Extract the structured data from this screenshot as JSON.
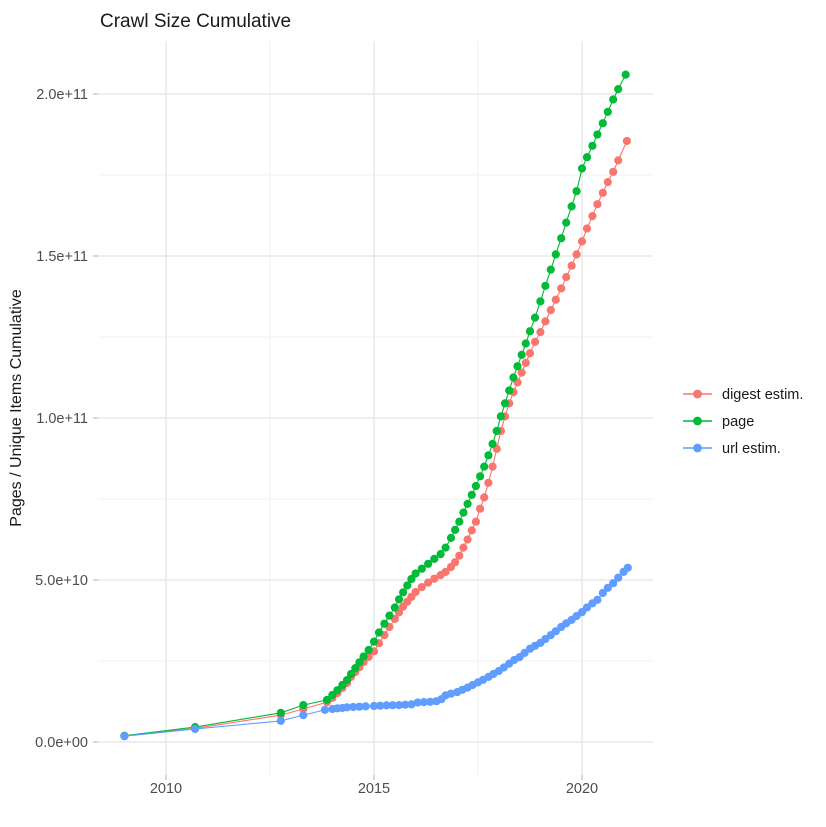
{
  "title": "Crawl Size Cumulative",
  "y_axis": {
    "label": "Pages / Unique Items Cumulative",
    "tick_labels": [
      "0.0e+00",
      "5.0e+10",
      "1.0e+11",
      "1.5e+11",
      "2.0e+11"
    ],
    "tick_values_billions": [
      0,
      50,
      100,
      150,
      200
    ],
    "minor_gridlines_billions": [
      25,
      75,
      125,
      175
    ]
  },
  "x_axis": {
    "tick_labels": [
      "2010",
      "2015",
      "2020"
    ],
    "tick_values_years": [
      2010,
      2015,
      2020
    ],
    "minor_gridlines_years": [
      2012.5,
      2017.5
    ]
  },
  "legend": {
    "position": "right-middle",
    "items": [
      {
        "label": "digest estim.",
        "color": "#F8766D"
      },
      {
        "label": "page",
        "color": "#00BA38"
      },
      {
        "label": "url estim.",
        "color": "#619CFF"
      }
    ]
  },
  "colors": {
    "grid_major": "#E4E4E4",
    "grid_minor": "#F1F1F1",
    "axis_text": "#4D4D4D",
    "tick_mark": "#BEBEBE",
    "title_text": "#1A1A1A"
  },
  "chart_data": {
    "type": "line",
    "title": "Crawl Size Cumulative",
    "xlabel": "",
    "ylabel": "Pages / Unique Items Cumulative",
    "x_range_years": [
      2008.4,
      2021.9
    ],
    "y_range_billions": [
      0,
      220
    ],
    "grid": "on",
    "legend_position": "right-middle",
    "units": "point values are billions (1e9) of pages / unique items, cumulative",
    "series": [
      {
        "name": "digest estim.",
        "color": "#F8766D",
        "points": [
          [
            2009.0,
            1.9
          ],
          [
            2010.7,
            4.2
          ],
          [
            2012.76,
            8.3
          ],
          [
            2013.3,
            10.2
          ],
          [
            2013.87,
            12.3
          ],
          [
            2014.0,
            13.6
          ],
          [
            2014.12,
            15.1
          ],
          [
            2014.24,
            16.7
          ],
          [
            2014.35,
            18.2
          ],
          [
            2014.45,
            20.1
          ],
          [
            2014.55,
            21.6
          ],
          [
            2014.65,
            23.1
          ],
          [
            2014.75,
            24.7
          ],
          [
            2014.87,
            26.3
          ],
          [
            2015.0,
            28.0
          ],
          [
            2015.12,
            30.5
          ],
          [
            2015.25,
            33.0
          ],
          [
            2015.37,
            35.5
          ],
          [
            2015.5,
            38.0
          ],
          [
            2015.6,
            40.0
          ],
          [
            2015.7,
            41.8
          ],
          [
            2015.8,
            43.3
          ],
          [
            2015.9,
            44.8
          ],
          [
            2016.0,
            46.3
          ],
          [
            2016.15,
            47.8
          ],
          [
            2016.3,
            49.2
          ],
          [
            2016.45,
            50.4
          ],
          [
            2016.6,
            51.5
          ],
          [
            2016.72,
            52.5
          ],
          [
            2016.85,
            54.0
          ],
          [
            2016.95,
            55.5
          ],
          [
            2017.05,
            57.5
          ],
          [
            2017.15,
            60.0
          ],
          [
            2017.25,
            62.5
          ],
          [
            2017.35,
            65.3
          ],
          [
            2017.45,
            68.0
          ],
          [
            2017.55,
            72.0
          ],
          [
            2017.65,
            75.5
          ],
          [
            2017.75,
            80.0
          ],
          [
            2017.85,
            85.0
          ],
          [
            2017.95,
            90.5
          ],
          [
            2018.05,
            96.0
          ],
          [
            2018.15,
            100.5
          ],
          [
            2018.25,
            104.5
          ],
          [
            2018.35,
            108.0
          ],
          [
            2018.45,
            111.0
          ],
          [
            2018.55,
            114.0
          ],
          [
            2018.65,
            117.0
          ],
          [
            2018.75,
            120.0
          ],
          [
            2018.87,
            123.5
          ],
          [
            2019.0,
            126.5
          ],
          [
            2019.12,
            129.8
          ],
          [
            2019.25,
            133.3
          ],
          [
            2019.37,
            136.5
          ],
          [
            2019.5,
            140.0
          ],
          [
            2019.62,
            143.5
          ],
          [
            2019.75,
            147.0
          ],
          [
            2019.87,
            150.5
          ],
          [
            2020.0,
            154.5
          ],
          [
            2020.12,
            158.5
          ],
          [
            2020.25,
            162.3
          ],
          [
            2020.37,
            166.0
          ],
          [
            2020.5,
            169.5
          ],
          [
            2020.62,
            172.8
          ],
          [
            2020.75,
            176.0
          ],
          [
            2020.87,
            179.5
          ],
          [
            2021.08,
            185.5
          ]
        ]
      },
      {
        "name": "page",
        "color": "#00BA38",
        "points": [
          [
            2009.0,
            1.9
          ],
          [
            2010.7,
            4.6
          ],
          [
            2012.76,
            9.0
          ],
          [
            2013.3,
            11.4
          ],
          [
            2013.87,
            13.0
          ],
          [
            2014.0,
            14.5
          ],
          [
            2014.12,
            16.0
          ],
          [
            2014.24,
            17.6
          ],
          [
            2014.35,
            19.1
          ],
          [
            2014.45,
            21.0
          ],
          [
            2014.55,
            22.8
          ],
          [
            2014.65,
            24.6
          ],
          [
            2014.75,
            26.4
          ],
          [
            2014.87,
            28.4
          ],
          [
            2015.0,
            31.0
          ],
          [
            2015.12,
            33.8
          ],
          [
            2015.25,
            36.5
          ],
          [
            2015.37,
            39.0
          ],
          [
            2015.5,
            41.5
          ],
          [
            2015.6,
            44.0
          ],
          [
            2015.7,
            46.2
          ],
          [
            2015.8,
            48.3
          ],
          [
            2015.9,
            50.3
          ],
          [
            2016.0,
            52.0
          ],
          [
            2016.15,
            53.5
          ],
          [
            2016.3,
            55.0
          ],
          [
            2016.45,
            56.5
          ],
          [
            2016.6,
            58.0
          ],
          [
            2016.72,
            60.0
          ],
          [
            2016.85,
            63.0
          ],
          [
            2016.95,
            65.5
          ],
          [
            2017.05,
            68.0
          ],
          [
            2017.15,
            70.8
          ],
          [
            2017.25,
            73.5
          ],
          [
            2017.35,
            76.3
          ],
          [
            2017.45,
            79.0
          ],
          [
            2017.55,
            82.0
          ],
          [
            2017.65,
            85.0
          ],
          [
            2017.75,
            88.5
          ],
          [
            2017.85,
            92.0
          ],
          [
            2017.95,
            96.0
          ],
          [
            2018.05,
            100.5
          ],
          [
            2018.15,
            104.5
          ],
          [
            2018.25,
            108.5
          ],
          [
            2018.35,
            112.5
          ],
          [
            2018.45,
            116.0
          ],
          [
            2018.55,
            119.5
          ],
          [
            2018.65,
            123.0
          ],
          [
            2018.75,
            126.8
          ],
          [
            2018.87,
            131.0
          ],
          [
            2019.0,
            136.0
          ],
          [
            2019.12,
            140.8
          ],
          [
            2019.25,
            145.8
          ],
          [
            2019.37,
            150.5
          ],
          [
            2019.5,
            155.5
          ],
          [
            2019.62,
            160.3
          ],
          [
            2019.75,
            165.3
          ],
          [
            2019.87,
            170.0
          ],
          [
            2020.0,
            177.0
          ],
          [
            2020.12,
            180.5
          ],
          [
            2020.25,
            184.0
          ],
          [
            2020.37,
            187.5
          ],
          [
            2020.5,
            191.0
          ],
          [
            2020.62,
            194.5
          ],
          [
            2020.75,
            198.3
          ],
          [
            2020.87,
            201.5
          ],
          [
            2021.05,
            206.0
          ]
        ]
      },
      {
        "name": "url estim.",
        "color": "#619CFF",
        "points": [
          [
            2009.0,
            1.8
          ],
          [
            2010.7,
            4.0
          ],
          [
            2012.76,
            6.5
          ],
          [
            2013.3,
            8.3
          ],
          [
            2013.82,
            9.9
          ],
          [
            2014.0,
            10.2
          ],
          [
            2014.12,
            10.4
          ],
          [
            2014.24,
            10.5
          ],
          [
            2014.35,
            10.7
          ],
          [
            2014.5,
            10.8
          ],
          [
            2014.65,
            10.9
          ],
          [
            2014.8,
            11.0
          ],
          [
            2015.0,
            11.1
          ],
          [
            2015.15,
            11.2
          ],
          [
            2015.3,
            11.3
          ],
          [
            2015.45,
            11.35
          ],
          [
            2015.6,
            11.4
          ],
          [
            2015.75,
            11.5
          ],
          [
            2015.9,
            11.6
          ],
          [
            2016.05,
            12.2
          ],
          [
            2016.2,
            12.3
          ],
          [
            2016.35,
            12.4
          ],
          [
            2016.5,
            12.6
          ],
          [
            2016.62,
            13.2
          ],
          [
            2016.72,
            14.4
          ],
          [
            2016.85,
            14.9
          ],
          [
            2017.0,
            15.4
          ],
          [
            2017.12,
            16.1
          ],
          [
            2017.25,
            16.8
          ],
          [
            2017.37,
            17.6
          ],
          [
            2017.5,
            18.4
          ],
          [
            2017.62,
            19.2
          ],
          [
            2017.75,
            20.1
          ],
          [
            2017.87,
            21.0
          ],
          [
            2018.0,
            21.9
          ],
          [
            2018.12,
            23.0
          ],
          [
            2018.25,
            24.2
          ],
          [
            2018.37,
            25.3
          ],
          [
            2018.5,
            26.2
          ],
          [
            2018.62,
            27.5
          ],
          [
            2018.75,
            28.8
          ],
          [
            2018.87,
            29.7
          ],
          [
            2019.0,
            30.6
          ],
          [
            2019.12,
            31.8
          ],
          [
            2019.25,
            33.0
          ],
          [
            2019.37,
            34.2
          ],
          [
            2019.5,
            35.5
          ],
          [
            2019.62,
            36.6
          ],
          [
            2019.75,
            37.7
          ],
          [
            2019.87,
            38.9
          ],
          [
            2020.0,
            40.1
          ],
          [
            2020.12,
            41.5
          ],
          [
            2020.25,
            42.8
          ],
          [
            2020.37,
            43.9
          ],
          [
            2020.5,
            46.0
          ],
          [
            2020.62,
            47.6
          ],
          [
            2020.75,
            49.0
          ],
          [
            2020.87,
            50.7
          ],
          [
            2021.0,
            52.5
          ],
          [
            2021.1,
            53.8
          ]
        ]
      }
    ]
  }
}
